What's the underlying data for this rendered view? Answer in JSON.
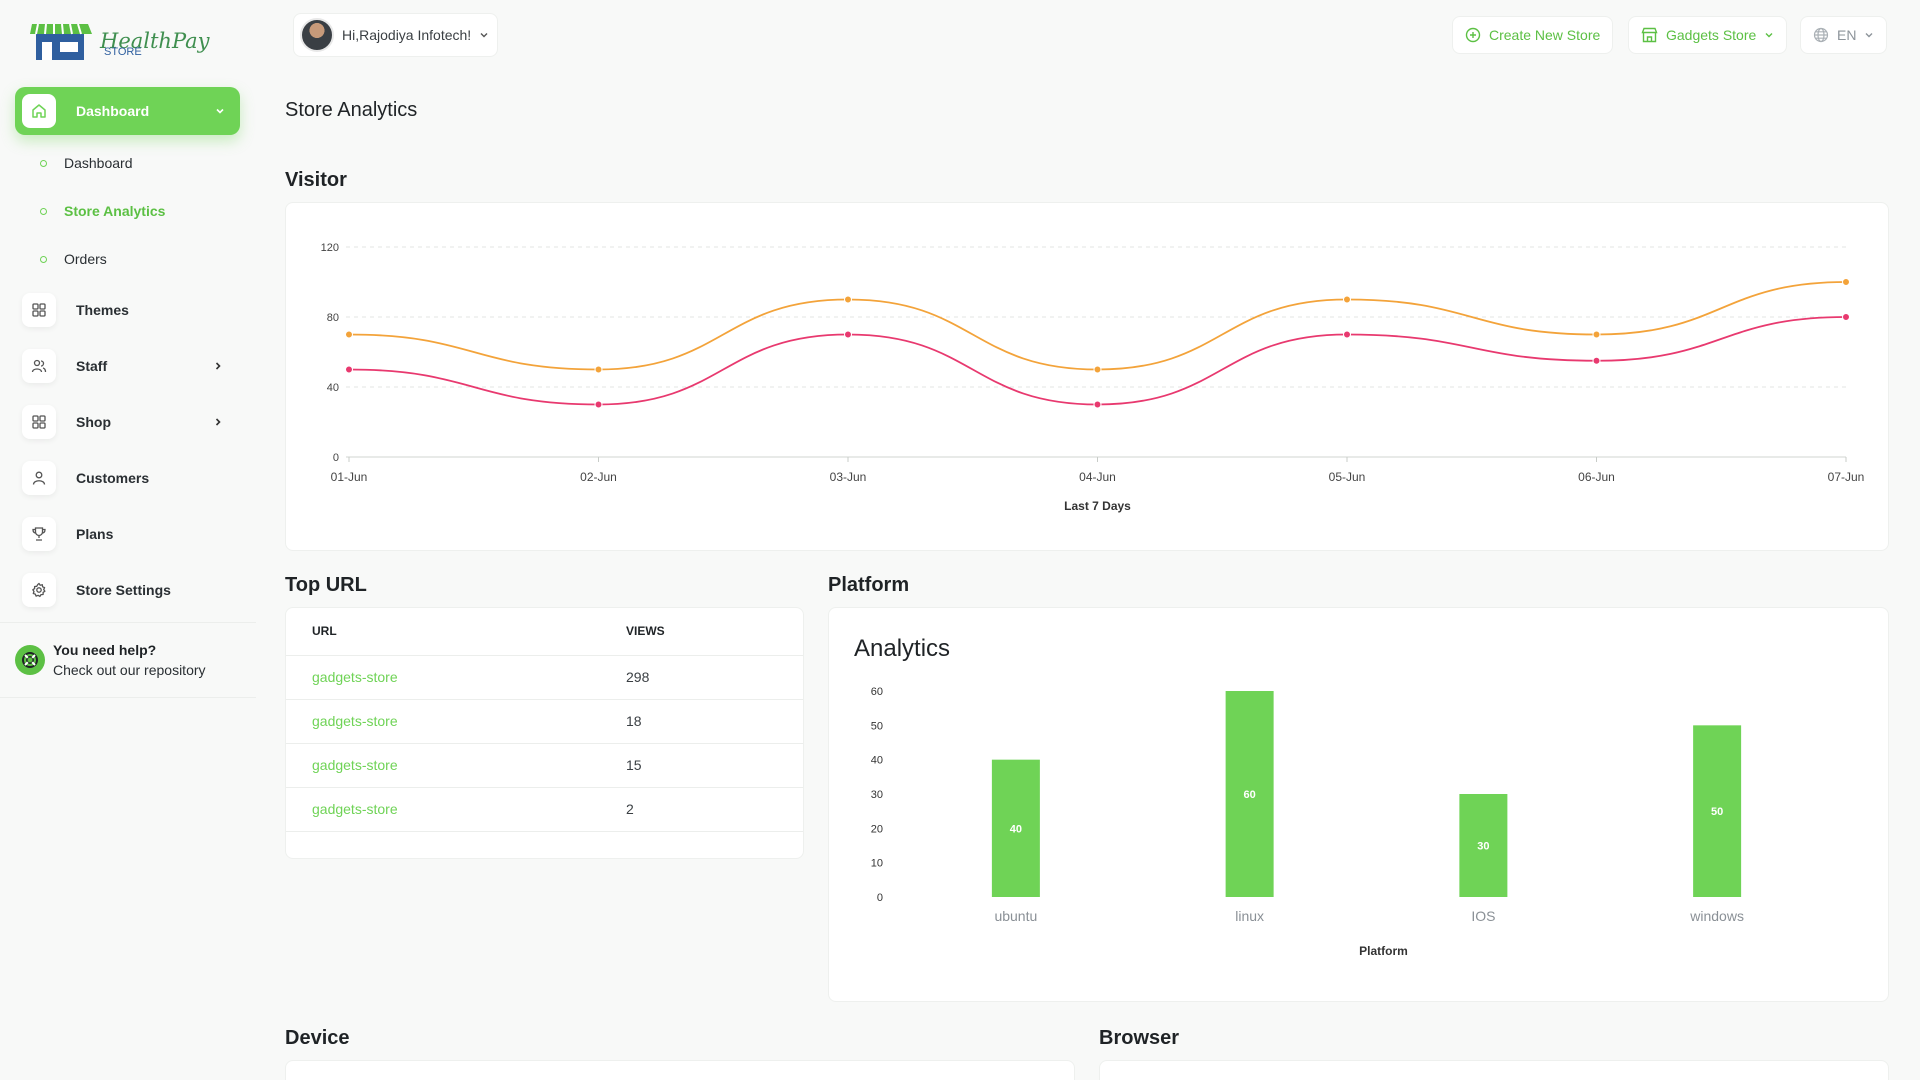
{
  "brand": {
    "name": "HealthPay",
    "sub": "STORE"
  },
  "sidebar": {
    "dashboard": "Dashboard",
    "sub_items": [
      "Dashboard",
      "Store Analytics",
      "Orders"
    ],
    "items": [
      {
        "label": "Themes",
        "icon": "grid-icon",
        "has_chevron": false
      },
      {
        "label": "Staff",
        "icon": "users-icon",
        "has_chevron": true
      },
      {
        "label": "Shop",
        "icon": "grid-icon",
        "has_chevron": true
      },
      {
        "label": "Customers",
        "icon": "user-icon",
        "has_chevron": false
      },
      {
        "label": "Plans",
        "icon": "trophy-icon",
        "has_chevron": false
      },
      {
        "label": "Store Settings",
        "icon": "gear-icon",
        "has_chevron": false
      }
    ],
    "help": {
      "title": "You need help?",
      "subtitle": "Check out our repository"
    }
  },
  "header": {
    "greeting": "Hi,Rajodiya Infotech!",
    "create_store": "Create New Store",
    "store": "Gadgets Store",
    "language": "EN"
  },
  "page": {
    "title": "Store Analytics",
    "visitor_title": "Visitor",
    "top_url_title": "Top URL",
    "platform_title": "Platform",
    "device_title": "Device",
    "browser_title": "Browser"
  },
  "top_url": {
    "headers": [
      "URL",
      "VIEWS"
    ],
    "rows": [
      {
        "url": "gadgets-store",
        "views": "298"
      },
      {
        "url": "gadgets-store",
        "views": "18"
      },
      {
        "url": "gadgets-store",
        "views": "15"
      },
      {
        "url": "gadgets-store",
        "views": "2"
      }
    ]
  },
  "colors": {
    "accent": "#6fd356",
    "orange": "#f3a33a",
    "pink": "#e8396f"
  },
  "chart_data": [
    {
      "type": "line",
      "title": "",
      "xlabel": "Last 7 Days",
      "ylabel": "",
      "x": [
        "01-Jun",
        "02-Jun",
        "03-Jun",
        "04-Jun",
        "05-Jun",
        "06-Jun",
        "07-Jun"
      ],
      "yticks": [
        0,
        40,
        80,
        120
      ],
      "ylim": [
        0,
        120
      ],
      "grid": true,
      "series": [
        {
          "color": "#f3a33a",
          "values": [
            70,
            50,
            90,
            50,
            90,
            70,
            100
          ]
        },
        {
          "color": "#e8396f",
          "values": [
            50,
            30,
            70,
            30,
            70,
            55,
            80
          ]
        }
      ]
    },
    {
      "type": "bar",
      "title": "Analytics",
      "xlabel": "Platform",
      "ylabel": "",
      "categories": [
        "ubuntu",
        "linux",
        "IOS",
        "windows"
      ],
      "values": [
        40,
        60,
        30,
        50
      ],
      "yticks": [
        0,
        10,
        20,
        30,
        40,
        50,
        60
      ],
      "ylim": [
        0,
        60
      ],
      "color": "#6fd356"
    }
  ]
}
